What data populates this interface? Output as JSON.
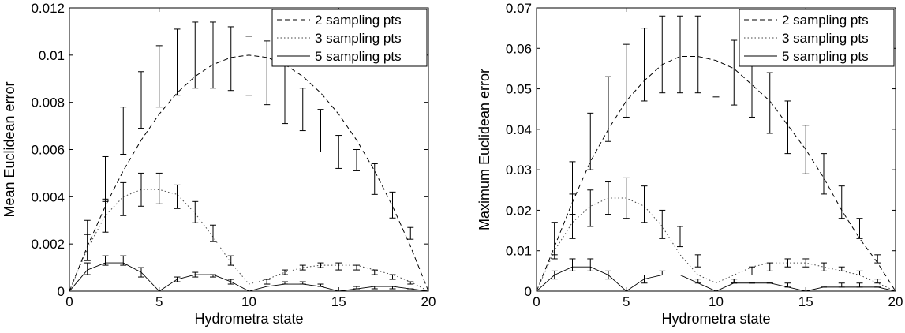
{
  "chart_data": [
    {
      "type": "line",
      "title": "",
      "xlabel": "Hydrometra state",
      "ylabel": "Mean Euclidean error",
      "xlim": [
        0,
        20
      ],
      "ylim": [
        0,
        0.012
      ],
      "xticks": [
        0,
        5,
        10,
        15,
        20
      ],
      "xtick_labels": [
        "0",
        "5",
        "10",
        "15",
        "20"
      ],
      "yticks": [
        0,
        0.002,
        0.004,
        0.006,
        0.008,
        0.01,
        0.012
      ],
      "ytick_labels": [
        "0",
        "0.002",
        "0.004",
        "0.006",
        "0.008",
        "0.01",
        "0.012"
      ],
      "legend_position": "top-right",
      "series": [
        {
          "name": "2 sampling pts",
          "style": "dashed",
          "x": [
            0,
            1,
            2,
            3,
            4,
            5,
            6,
            7,
            8,
            9,
            10,
            11,
            12,
            13,
            14,
            15,
            16,
            17,
            18,
            19,
            20
          ],
          "y": [
            0,
            0.0019,
            0.0036,
            0.0051,
            0.0064,
            0.0075,
            0.0084,
            0.0091,
            0.0096,
            0.0099,
            0.01,
            0.0099,
            0.0096,
            0.0091,
            0.0084,
            0.0075,
            0.0064,
            0.0051,
            0.0036,
            0.0019,
            0
          ],
          "error_x": [
            1,
            2,
            3,
            4,
            5,
            6,
            7,
            8,
            9,
            10,
            11,
            12,
            13,
            14,
            15,
            16,
            17,
            18,
            19
          ],
          "error_mean": [
            0.0023,
            0.0048,
            0.0068,
            0.0081,
            0.0091,
            0.0097,
            0.0099,
            0.01,
            0.0099,
            0.0095,
            0.0093,
            0.0084,
            0.0077,
            0.0071,
            0.0061,
            0.0057,
            0.0046,
            0.0036,
            0.0025
          ],
          "error_low": [
            0.0013,
            0.0038,
            0.0058,
            0.0069,
            0.0078,
            0.0083,
            0.0086,
            0.0086,
            0.0085,
            0.0083,
            0.0079,
            0.0071,
            0.0068,
            0.0059,
            0.0052,
            0.0051,
            0.0041,
            0.0031,
            0.0022
          ],
          "error_high": [
            0.003,
            0.0057,
            0.0078,
            0.0093,
            0.0104,
            0.0111,
            0.0114,
            0.0114,
            0.0112,
            0.0108,
            0.0106,
            0.0097,
            0.0086,
            0.0077,
            0.0066,
            0.006,
            0.0054,
            0.0042,
            0.0027
          ]
        },
        {
          "name": "3 sampling pts",
          "style": "dotted",
          "x": [
            0,
            1,
            2,
            3,
            4,
            5,
            6,
            7,
            8,
            9,
            10,
            11,
            12,
            13,
            14,
            15,
            16,
            17,
            18,
            19,
            20
          ],
          "y": [
            0,
            0.0018,
            0.0032,
            0.004,
            0.0043,
            0.0043,
            0.0041,
            0.0033,
            0.0023,
            0.0012,
            0.0003,
            0.0005,
            0.0008,
            0.001,
            0.0011,
            0.0011,
            0.0011,
            0.0009,
            0.0007,
            0.0004,
            0
          ],
          "error_x": [
            1,
            2,
            3,
            4,
            5,
            6,
            7,
            8,
            9,
            11,
            12,
            13,
            14,
            15,
            16,
            17,
            18,
            19
          ],
          "error_mean": [
            0.0018,
            0.0032,
            0.004,
            0.0043,
            0.0043,
            0.0041,
            0.0033,
            0.0024,
            0.0013,
            0.0004,
            0.0008,
            0.001,
            0.0011,
            0.0011,
            0.001,
            0.0008,
            0.0006,
            0.0004
          ],
          "error_low": [
            0.0013,
            0.0025,
            0.0032,
            0.0036,
            0.0037,
            0.0035,
            0.0029,
            0.0021,
            0.0011,
            0.0003,
            0.0007,
            0.0009,
            0.001,
            0.0009,
            0.0009,
            0.0007,
            0.0005,
            0.0003
          ],
          "error_high": [
            0.0024,
            0.0039,
            0.0046,
            0.005,
            0.005,
            0.0045,
            0.0038,
            0.0028,
            0.0015,
            0.0005,
            0.0009,
            0.0011,
            0.0012,
            0.0012,
            0.0011,
            0.0009,
            0.0007,
            0.0004
          ]
        },
        {
          "name": "5 sampling pts",
          "style": "solid",
          "x": [
            0,
            1,
            2,
            3,
            4,
            5,
            6,
            7,
            8,
            9,
            10,
            11,
            12,
            13,
            14,
            15,
            16,
            17,
            18,
            19,
            20
          ],
          "y": [
            0,
            0.0009,
            0.0012,
            0.0012,
            0.0008,
            0,
            0.0005,
            0.0007,
            0.0007,
            0.0004,
            0,
            0.0002,
            0.0003,
            0.0003,
            0.0002,
            0,
            0.0001,
            0.0002,
            0.0002,
            0.0001,
            0
          ],
          "error_x": [
            1,
            2,
            3,
            4,
            6,
            7,
            8,
            9,
            11,
            12,
            13,
            14,
            16,
            17,
            18,
            19
          ],
          "error_mean": [
            0.0009,
            0.0013,
            0.0013,
            0.0008,
            0.0005,
            0.0007,
            0.0007,
            0.0004,
            0.0004,
            0.0003,
            0.0003,
            0.0002,
            0.0001,
            0.0002,
            0.0002,
            0.0001
          ],
          "error_low": [
            0.0007,
            0.0011,
            0.0011,
            0.0006,
            0.0004,
            0.0006,
            0.0006,
            0.0003,
            0.0003,
            0.0003,
            0.0003,
            0.0002,
            0.0001,
            0.0001,
            0.0001,
            0.0001
          ],
          "error_high": [
            0.0012,
            0.0015,
            0.0015,
            0.001,
            0.0006,
            0.0008,
            0.0007,
            0.0005,
            0.0005,
            0.0004,
            0.0004,
            0.0003,
            0.0002,
            0.0002,
            0.0002,
            0.0001
          ]
        }
      ]
    },
    {
      "type": "line",
      "title": "",
      "xlabel": "Hydrometra state",
      "ylabel": "Maximum Euclidean error",
      "xlim": [
        0,
        20
      ],
      "ylim": [
        0,
        0.07
      ],
      "xticks": [
        0,
        5,
        10,
        15,
        20
      ],
      "xtick_labels": [
        "0",
        "5",
        "10",
        "15",
        "20"
      ],
      "yticks": [
        0,
        0.01,
        0.02,
        0.03,
        0.04,
        0.05,
        0.06,
        0.07
      ],
      "ytick_labels": [
        "0",
        "0.01",
        "0.02",
        "0.03",
        "0.04",
        "0.05",
        "0.06",
        "0.07"
      ],
      "legend_position": "top-right",
      "series": [
        {
          "name": "2 sampling pts",
          "style": "dashed",
          "x": [
            0,
            1,
            2,
            3,
            4,
            5,
            6,
            7,
            8,
            9,
            10,
            11,
            12,
            13,
            14,
            15,
            16,
            17,
            18,
            19,
            20
          ],
          "y": [
            0,
            0.011,
            0.022,
            0.032,
            0.04,
            0.047,
            0.052,
            0.056,
            0.058,
            0.058,
            0.057,
            0.055,
            0.051,
            0.047,
            0.041,
            0.035,
            0.028,
            0.02,
            0.013,
            0.007,
            0
          ],
          "error_x": [
            1,
            2,
            3,
            4,
            5,
            6,
            7,
            8,
            9,
            10,
            11,
            12,
            13,
            14,
            15,
            16,
            17,
            18,
            19
          ],
          "error_mean": [
            0.012,
            0.025,
            0.036,
            0.045,
            0.052,
            0.056,
            0.058,
            0.059,
            0.058,
            0.057,
            0.055,
            0.052,
            0.047,
            0.041,
            0.034,
            0.028,
            0.022,
            0.015,
            0.008
          ],
          "error_low": [
            0.008,
            0.019,
            0.03,
            0.037,
            0.043,
            0.047,
            0.049,
            0.049,
            0.049,
            0.048,
            0.046,
            0.043,
            0.039,
            0.034,
            0.029,
            0.024,
            0.018,
            0.013,
            0.007
          ],
          "error_high": [
            0.017,
            0.032,
            0.044,
            0.053,
            0.061,
            0.065,
            0.068,
            0.068,
            0.068,
            0.066,
            0.062,
            0.058,
            0.054,
            0.047,
            0.041,
            0.034,
            0.026,
            0.018,
            0.009
          ]
        },
        {
          "name": "3 sampling pts",
          "style": "dotted",
          "x": [
            0,
            1,
            2,
            3,
            4,
            5,
            6,
            7,
            8,
            9,
            10,
            11,
            12,
            13,
            14,
            15,
            16,
            17,
            18,
            19,
            20
          ],
          "y": [
            0,
            0.01,
            0.017,
            0.021,
            0.023,
            0.023,
            0.021,
            0.016,
            0.009,
            0.004,
            0.002,
            0.004,
            0.006,
            0.007,
            0.007,
            0.007,
            0.006,
            0.005,
            0.004,
            0.002,
            0
          ],
          "error_x": [
            1,
            2,
            3,
            4,
            5,
            6,
            7,
            8,
            9,
            11,
            12,
            13,
            14,
            15,
            16,
            17,
            18,
            19
          ],
          "error_mean": [
            0.012,
            0.018,
            0.021,
            0.023,
            0.023,
            0.021,
            0.016,
            0.013,
            0.007,
            0.003,
            0.005,
            0.006,
            0.007,
            0.007,
            0.006,
            0.006,
            0.004,
            0.002
          ],
          "error_low": [
            0.009,
            0.013,
            0.016,
            0.019,
            0.018,
            0.017,
            0.013,
            0.011,
            0.006,
            0.002,
            0.004,
            0.005,
            0.006,
            0.006,
            0.005,
            0.005,
            0.004,
            0.002
          ],
          "error_high": [
            0.017,
            0.024,
            0.025,
            0.027,
            0.028,
            0.026,
            0.02,
            0.016,
            0.009,
            0.003,
            0.006,
            0.007,
            0.008,
            0.008,
            0.007,
            0.006,
            0.005,
            0.003
          ]
        },
        {
          "name": "5 sampling pts",
          "style": "solid",
          "x": [
            0,
            1,
            2,
            3,
            4,
            5,
            6,
            7,
            8,
            9,
            10,
            11,
            12,
            13,
            14,
            15,
            16,
            17,
            18,
            19,
            20
          ],
          "y": [
            0,
            0.004,
            0.006,
            0.006,
            0.004,
            0,
            0.003,
            0.004,
            0.004,
            0.002,
            0,
            0.002,
            0.002,
            0.002,
            0.001,
            0,
            0.001,
            0.001,
            0.001,
            0.001,
            0
          ],
          "error_x": [
            1,
            2,
            3,
            4,
            6,
            7,
            8,
            9,
            11,
            12,
            13,
            14,
            16,
            17,
            18,
            19
          ],
          "error_mean": [
            0.004,
            0.006,
            0.006,
            0.004,
            0.003,
            0.004,
            0.004,
            0.002,
            0.002,
            0.002,
            0.002,
            0.001,
            0.001,
            0.001,
            0.001,
            0.001
          ],
          "error_low": [
            0.003,
            0.005,
            0.005,
            0.003,
            0.002,
            0.004,
            0.004,
            0.002,
            0.002,
            0.002,
            0.002,
            0.001,
            0.001,
            0.001,
            0.001,
            0.001
          ],
          "error_high": [
            0.005,
            0.008,
            0.008,
            0.005,
            0.004,
            0.005,
            0.004,
            0.003,
            0.003,
            0.002,
            0.002,
            0.002,
            0.001,
            0.002,
            0.002,
            0.001
          ]
        }
      ]
    }
  ]
}
